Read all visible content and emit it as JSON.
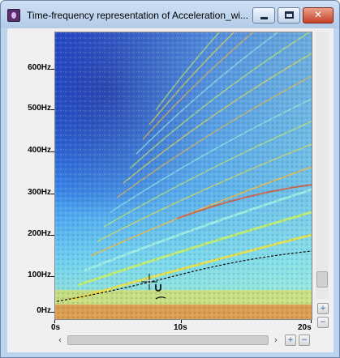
{
  "window": {
    "title": "Time-frequency representation of Acceleration_wi...",
    "minimize_glyph": "",
    "maximize_glyph": "",
    "close_glyph": "✕"
  },
  "y_axis": {
    "ticks": [
      "600Hz",
      "500Hz",
      "400Hz",
      "300Hz",
      "200Hz",
      "100Hz",
      "0Hz"
    ]
  },
  "x_axis": {
    "ticks": [
      "0s",
      "10s",
      "20s"
    ]
  },
  "controls": {
    "zoom_in_glyph": "+",
    "zoom_out_glyph": "−",
    "scroll_left_glyph": "‹",
    "scroll_right_glyph": "›"
  },
  "colors": {
    "spectrogram_low": "#1f3fc4",
    "spectrogram_mid": "#4fb0ff",
    "spectrogram_cyan": "#8ee8d8",
    "spectrogram_high": "#f0d83a",
    "spectrogram_peak": "#e0522a"
  },
  "icons": {
    "app": "app-icon",
    "crosshair": "crosshair-icon",
    "zoom_in": "zoom-in-icon",
    "zoom_out": "zoom-out-icon"
  }
}
